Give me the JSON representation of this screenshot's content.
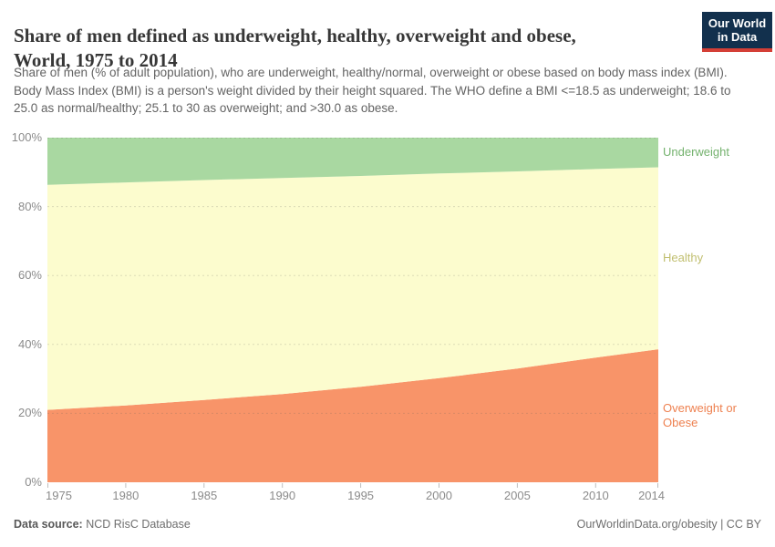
{
  "header": {
    "title_line1": "Share of men defined as underweight, healthy, overweight and obese,",
    "title_line2": "World, 1975 to 2014",
    "subtitle": "Share of men (% of adult population), who are underweight, healthy/normal, overweight or obese based on body mass index (BMI). Body Mass Index (BMI) is a person's weight divided by their height squared. The WHO define a BMI <=18.5 as underweight; 18.6 to 25.0 as normal/healthy; 25.1 to 30 as overweight; and >30.0 as obese.",
    "logo": {
      "line1": "Our World",
      "line2": "in Data",
      "bg_color": "#12304d",
      "accent_color": "#d43f36"
    }
  },
  "footer": {
    "datasource_label": "Data source:",
    "datasource_value": " NCD RisC Database",
    "credit": "OurWorldinData.org/obesity | CC BY"
  },
  "chart_data": {
    "type": "area",
    "stacked": true,
    "title": "Share of men defined as underweight, healthy, overweight and obese, World, 1975 to 2014",
    "x": [
      1975,
      1980,
      1985,
      1990,
      1995,
      2000,
      2005,
      2010,
      2014
    ],
    "xlim": [
      1975,
      2014
    ],
    "ylim": [
      0,
      100
    ],
    "yticks": [
      0,
      20,
      40,
      60,
      80,
      100
    ],
    "ytick_format": "percent",
    "xticks": [
      1975,
      1980,
      1985,
      1990,
      1995,
      2000,
      2005,
      2010,
      2014
    ],
    "grid": "dashed-horizontal",
    "legend_position": "right-of-plot",
    "series": [
      {
        "name": "Overweight or Obese",
        "fill": "#f89469",
        "label_color": "#ee8150",
        "values": [
          21.0,
          22.3,
          23.9,
          25.6,
          27.7,
          30.2,
          33.0,
          36.2,
          38.6
        ]
      },
      {
        "name": "Healthy",
        "fill": "#fcfcce",
        "label_color": "#c1bf70",
        "values": [
          65.3,
          64.7,
          63.8,
          62.7,
          61.2,
          59.4,
          57.2,
          54.7,
          52.8
        ]
      },
      {
        "name": "Underweight",
        "fill": "#a9d8a1",
        "label_color": "#74b26e",
        "values": [
          13.7,
          13.0,
          12.3,
          11.7,
          11.1,
          10.4,
          9.8,
          9.1,
          8.6
        ]
      }
    ]
  }
}
